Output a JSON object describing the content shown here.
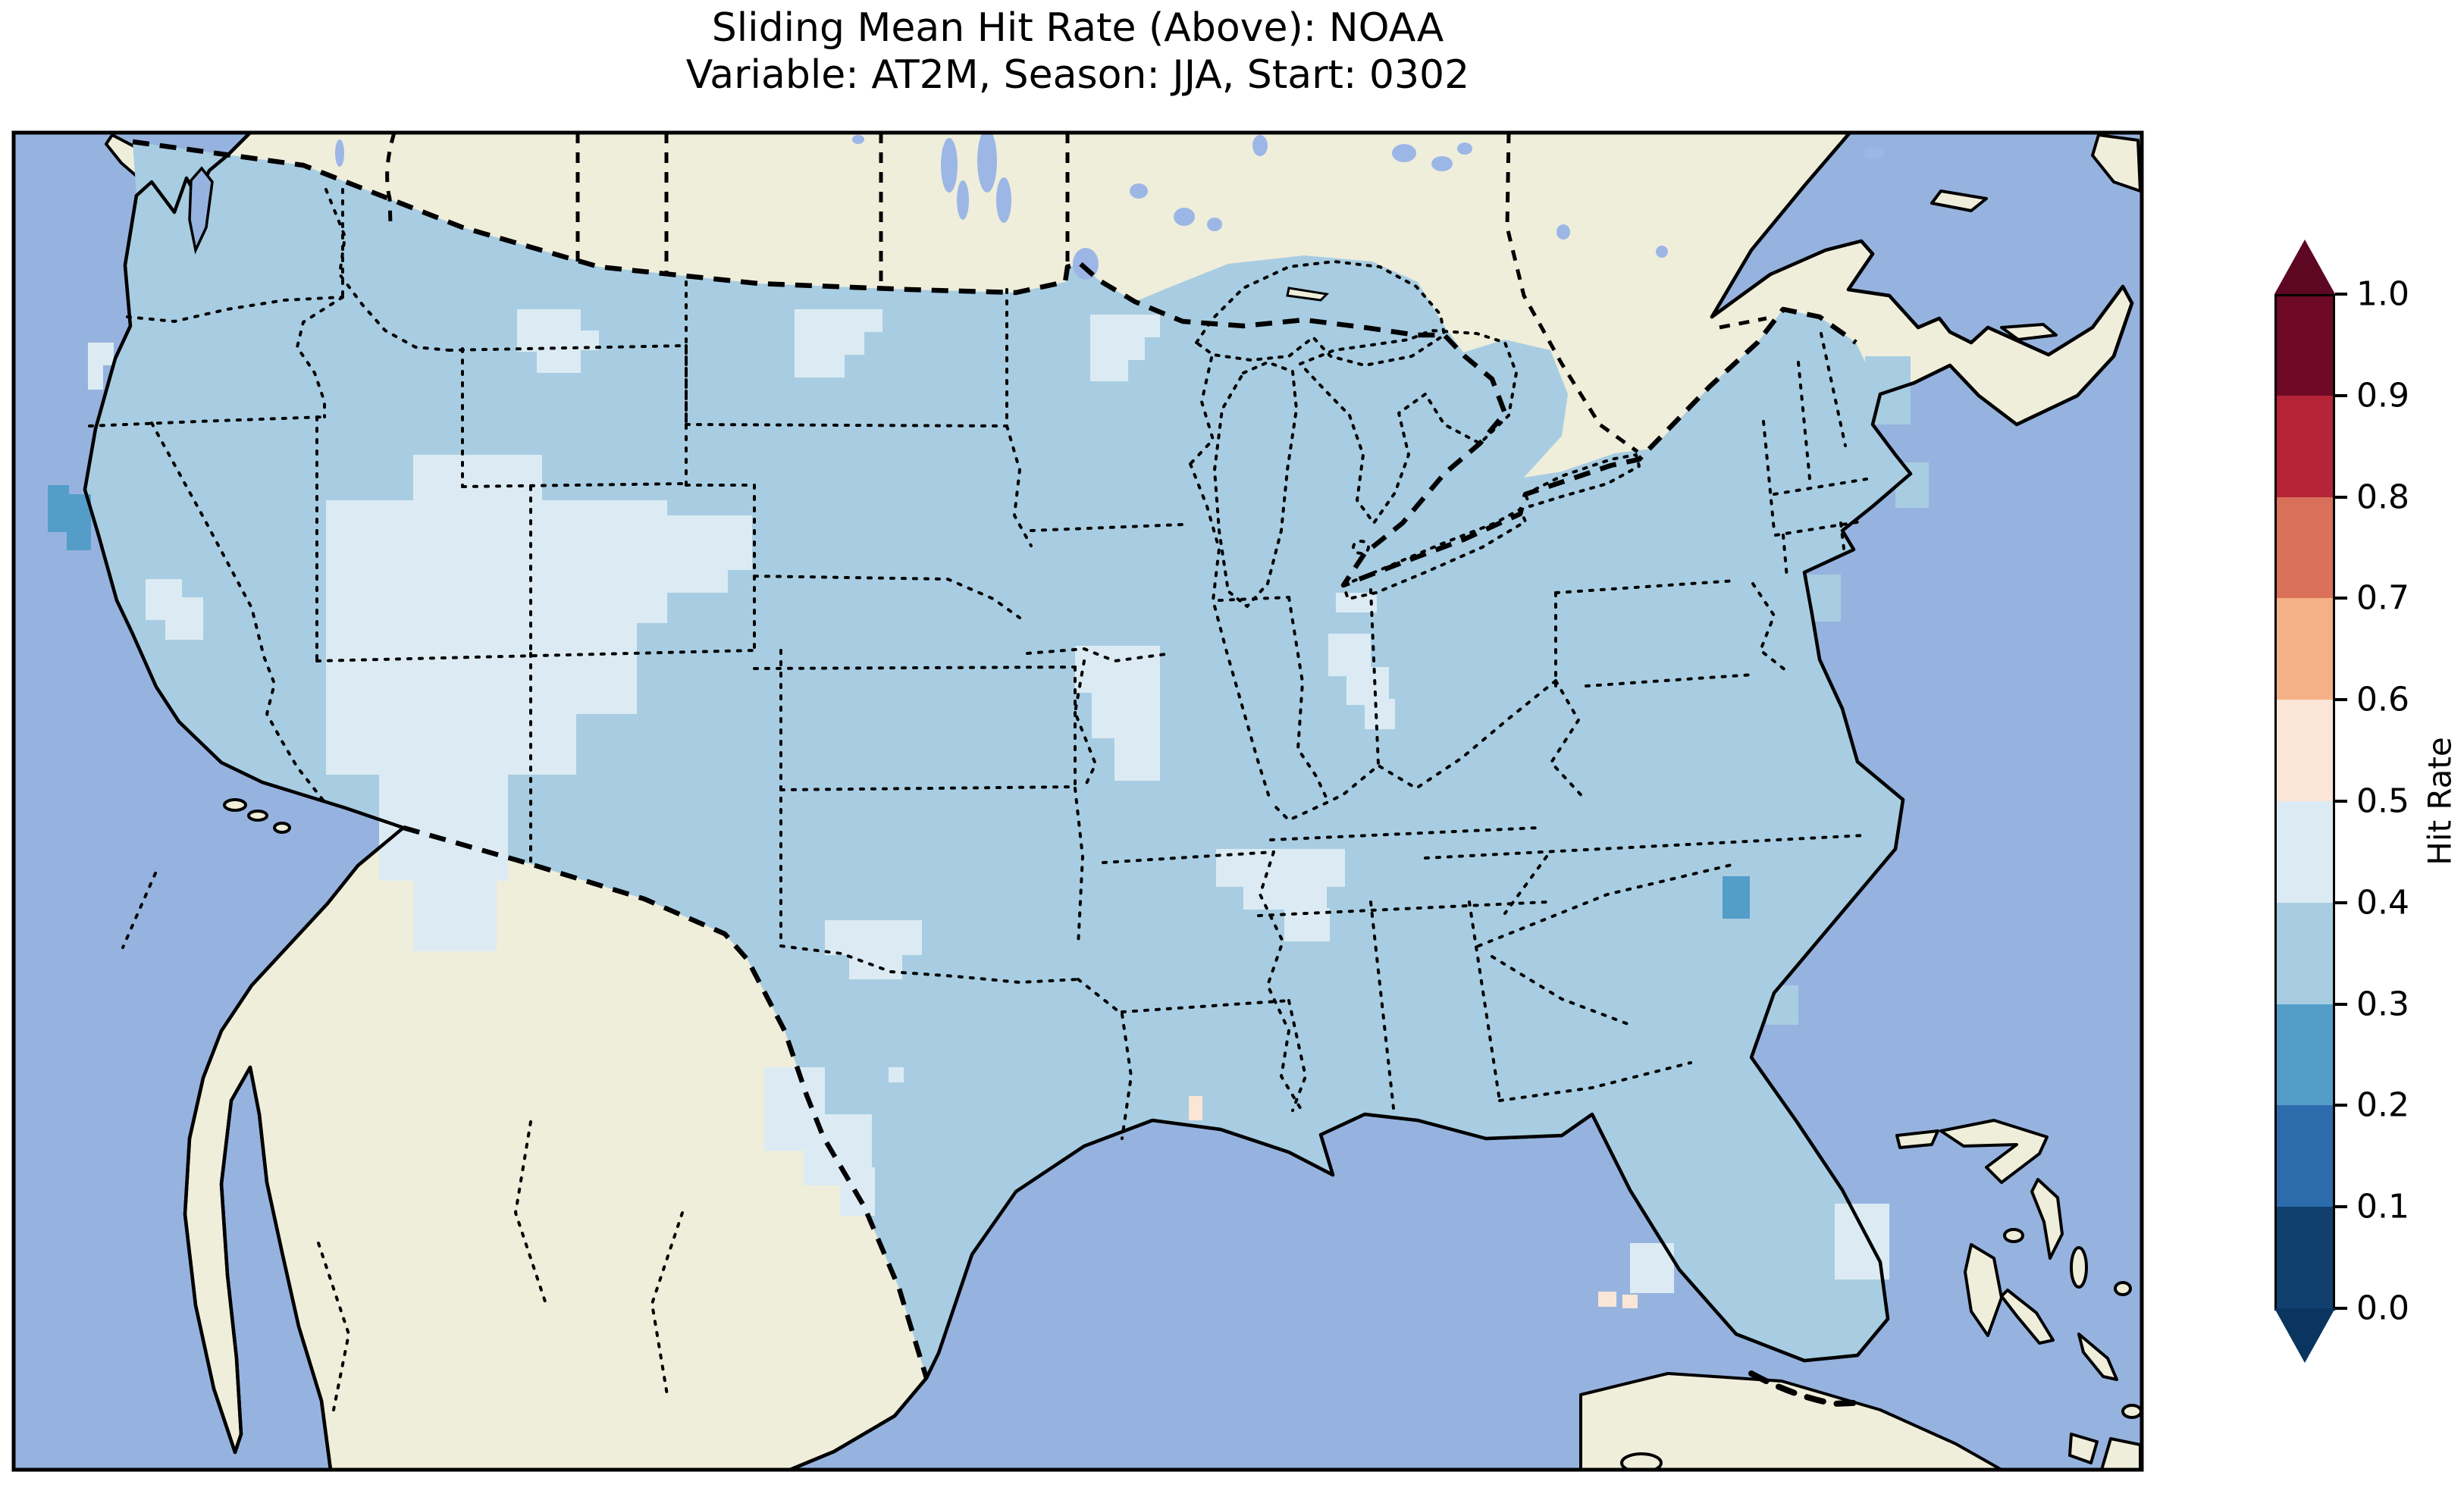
{
  "title": {
    "line1": "Sliding Mean Hit Rate (Above): NOAA",
    "line2": "Variable: AT2M, Season: JJA, Start: 0302"
  },
  "colorbar": {
    "label": "Hit Rate",
    "tick_labels_top_to_bottom": [
      "1.0",
      "0.9",
      "0.8",
      "0.7",
      "0.6",
      "0.5",
      "0.4",
      "0.3",
      "0.2",
      "0.1",
      "0.0"
    ],
    "bin_edges": [
      0.0,
      0.1,
      0.2,
      0.3,
      0.4,
      0.5,
      0.6,
      0.7,
      0.8,
      0.9,
      1.0
    ],
    "colors_low_to_high": [
      "#11406f",
      "#2d6cac",
      "#539dc8",
      "#a8cde2",
      "#dcebf3",
      "#fbe5d6",
      "#f5b185",
      "#d8705a",
      "#b52437",
      "#6f0a26"
    ],
    "under_color": "#0a3561",
    "over_color": "#5e0722",
    "extend": "both"
  },
  "map": {
    "colors": {
      "ocean": "#96b3df",
      "land": "#efeedb",
      "lake": "#96b3df",
      "small_lake": "#9cb7e6",
      "cell_0_3_to_0_4": "#a8cde2",
      "cell_0_4_to_0_5": "#dcebf3",
      "cell_0_2_to_0_3": "#539dc8",
      "cell_0_5_to_0_6": "#fbe5d6",
      "line": "#000000"
    }
  },
  "chart_data": {
    "type": "heatmap",
    "subtype": "gridded-hit-rate-map-conus",
    "title": "Sliding Mean Hit Rate (Above): NOAA",
    "subtitle": "Variable: AT2M, Season: JJA, Start: 0302",
    "colorbar_label": "Hit Rate",
    "colorbar_ticks": [
      1.0,
      0.9,
      0.8,
      0.7,
      0.6,
      0.5,
      0.4,
      0.3,
      0.2,
      0.1,
      0.0
    ],
    "value_range": [
      0.0,
      1.0
    ],
    "colormap": "RdBu_r discrete 10 bins, extend both",
    "legend_position": "right",
    "regions": [
      {
        "region": "most of contiguous United States",
        "hit_rate": "0.3-0.4"
      },
      {
        "region": "Utah / western Colorado / SW Wyoming / NE Arizona / NW New Mexico (large patch)",
        "hit_rate": "0.4-0.5"
      },
      {
        "region": "central Nevada patch",
        "hit_rate": "0.4-0.5"
      },
      {
        "region": "Oregon coast small patch",
        "hit_rate": "0.4-0.5"
      },
      {
        "region": "NE Montana and eastern North Dakota / NW Minnesota patches",
        "hit_rate": "0.4-0.5"
      },
      {
        "region": "SE Iowa / NE Missouri / W Illinois patch",
        "hit_rate": "0.4-0.5"
      },
      {
        "region": "central Ohio diagonal patch",
        "hit_rate": "0.4-0.5"
      },
      {
        "region": "middle Tennessee patch",
        "hit_rate": "0.4-0.5"
      },
      {
        "region": "Red River (Texas-Oklahoma) patch",
        "hit_rate": "0.4-0.5"
      },
      {
        "region": "Rio Grande / Big Bend Texas band",
        "hit_rate": "0.4-0.5"
      },
      {
        "region": "southern Florida cells",
        "hit_rate": "0.4-0.5"
      },
      {
        "region": "northern California coast patch",
        "hit_rate": "0.2-0.3"
      },
      {
        "region": "Cape Fear NC coast cell",
        "hit_rate": "0.2-0.3"
      },
      {
        "region": "isolated cells near Louisiana and Florida Keys",
        "hit_rate": "0.5-0.6"
      }
    ]
  }
}
